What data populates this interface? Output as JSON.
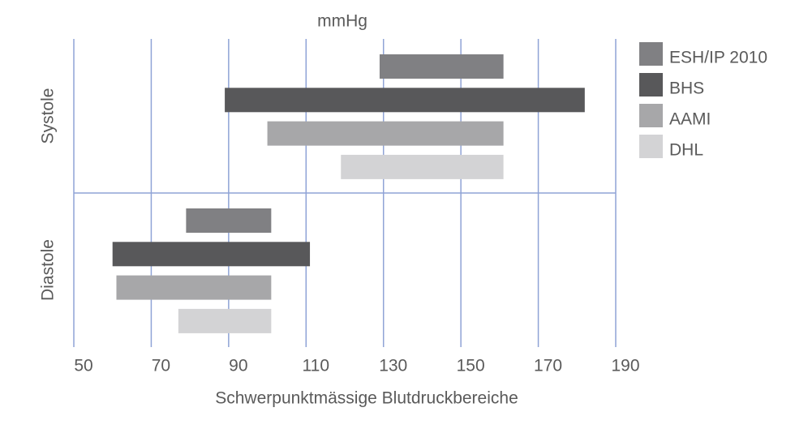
{
  "chart_data": {
    "type": "floating-bar",
    "title": "mmHg",
    "x_label": "Schwerpunktmässige Blutdruckbereiche",
    "categories": [
      "Systole",
      "Diastole"
    ],
    "series": [
      {
        "name": "ESH/IP 2010",
        "color": "#808083",
        "values": [
          [
            129,
            161
          ],
          [
            79,
            101
          ]
        ]
      },
      {
        "name": "BHS",
        "color": "#58585a",
        "values": [
          [
            89,
            182
          ],
          [
            60,
            111
          ]
        ]
      },
      {
        "name": "AAMI",
        "color": "#a7a7a9",
        "values": [
          [
            100,
            161
          ],
          [
            61,
            101
          ]
        ]
      },
      {
        "name": "DHL",
        "color": "#d3d3d5",
        "values": [
          [
            119,
            161
          ],
          [
            77,
            101
          ]
        ]
      }
    ],
    "xlim": [
      50,
      190
    ],
    "xticks": [
      50,
      70,
      90,
      110,
      130,
      150,
      170,
      190
    ],
    "grid": true,
    "grid_color": "#8fa3d6",
    "legend": "right"
  }
}
